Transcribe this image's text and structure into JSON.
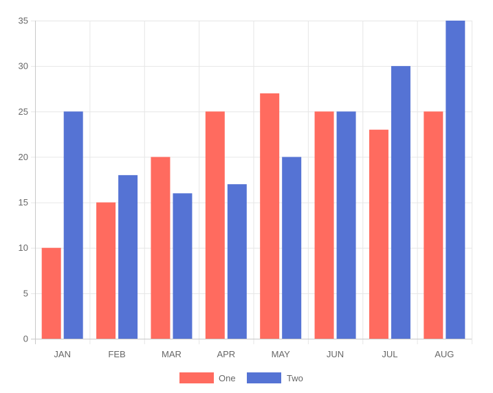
{
  "chart_data": {
    "type": "bar",
    "categories": [
      "JAN",
      "FEB",
      "MAR",
      "APR",
      "MAY",
      "JUN",
      "JUL",
      "AUG"
    ],
    "series": [
      {
        "name": "One",
        "values": [
          10,
          15,
          20,
          25,
          27,
          25,
          23,
          25
        ],
        "color": "#ff6b5f"
      },
      {
        "name": "Two",
        "values": [
          25,
          18,
          16,
          17,
          20,
          25,
          30,
          35
        ],
        "color": "#5573d4"
      }
    ],
    "ylim": [
      0,
      35
    ],
    "yticks": [
      "0",
      "5",
      "10",
      "15",
      "20",
      "25",
      "30",
      "35"
    ],
    "grid": true,
    "legend_position": "bottom"
  }
}
